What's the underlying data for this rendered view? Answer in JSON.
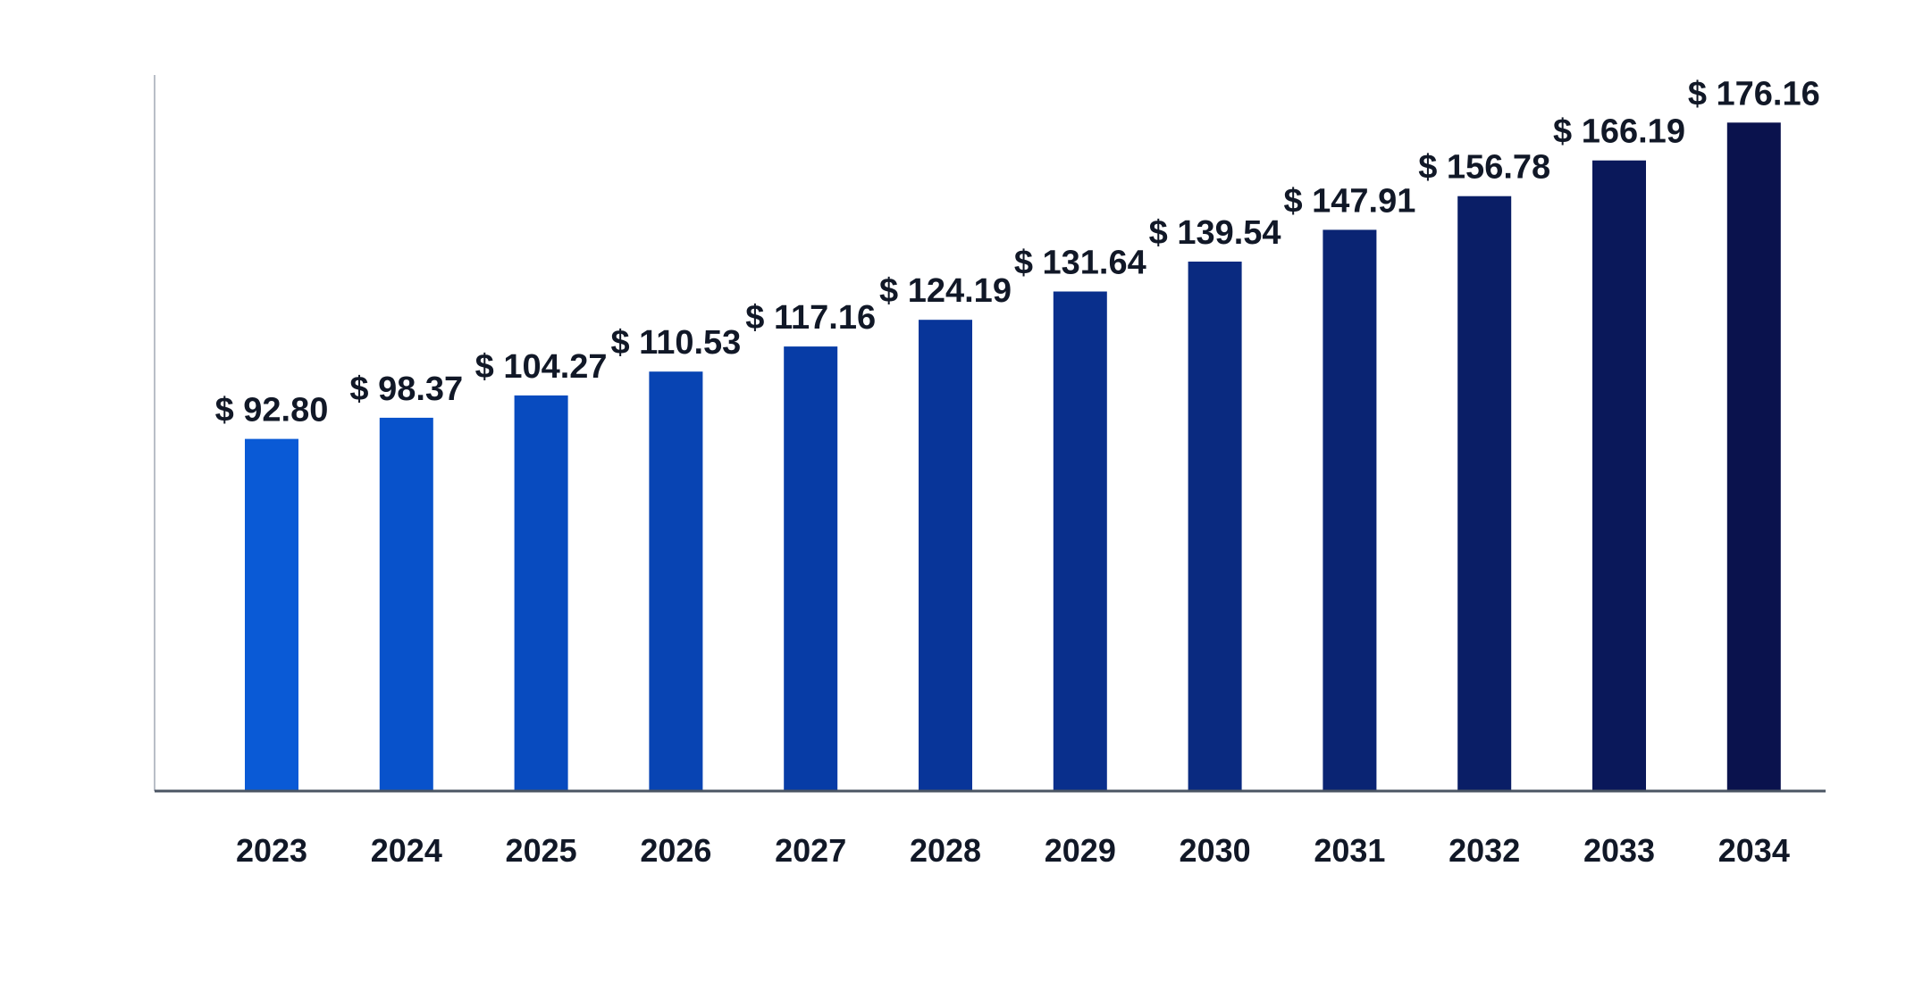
{
  "chart_data": {
    "type": "bar",
    "categories": [
      "2023",
      "2024",
      "2025",
      "2026",
      "2027",
      "2028",
      "2029",
      "2030",
      "2031",
      "2032",
      "2033",
      "2034"
    ],
    "values": [
      92.8,
      98.37,
      104.27,
      110.53,
      117.16,
      124.19,
      131.64,
      139.54,
      147.91,
      156.78,
      166.19,
      176.16
    ],
    "data_labels": [
      "$ 92.80",
      "$ 98.37",
      "$ 104.27",
      "$ 110.53",
      "$ 117.16",
      "$ 124.19",
      "$ 131.64",
      "$ 139.54",
      "$ 147.91",
      "$ 156.78",
      "$ 166.19",
      "$ 176.16"
    ],
    "colors": [
      "#0a5ad6",
      "#0852cb",
      "#084bbf",
      "#0844b3",
      "#073ca6",
      "#083599",
      "#092f8c",
      "#0a2a80",
      "#0a2473",
      "#0a1e66",
      "#0a185a",
      "#0a124d"
    ],
    "title": "",
    "xlabel": "",
    "ylabel": "",
    "grid": false,
    "legend": "none"
  }
}
